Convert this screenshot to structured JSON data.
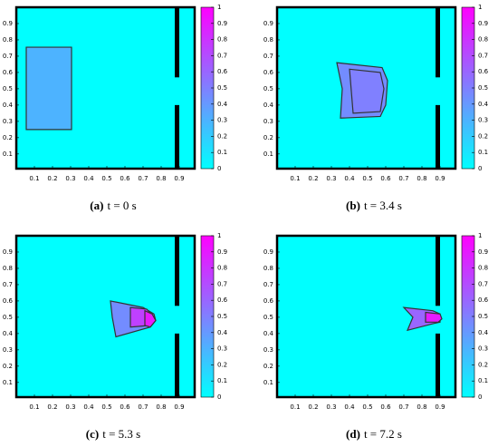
{
  "chart_data": [
    {
      "type": "contour",
      "caption_label": "(a)",
      "caption_text": "t = 0 s",
      "xlim": [
        0,
        0.985
      ],
      "ylim": [
        0.01,
        1
      ],
      "xticks": [
        0.1,
        0.2,
        0.3,
        0.4,
        0.5,
        0.6,
        0.7,
        0.8,
        0.9
      ],
      "yticks": [
        0.1,
        0.2,
        0.3,
        0.4,
        0.5,
        0.6,
        0.7,
        0.8,
        0.9
      ],
      "clim": [
        0,
        1
      ],
      "cticks": [
        0,
        0.1,
        0.2,
        0.3,
        0.4,
        0.5,
        0.6,
        0.7,
        0.8,
        0.9,
        1
      ],
      "colormap": [
        "#00ffff",
        "#ff00ff"
      ],
      "background_level": 0,
      "obstacles": [
        {
          "color": "#000000",
          "x": [
            0.875,
            0.9
          ],
          "y": [
            0.57,
            1
          ]
        },
        {
          "color": "#000000",
          "x": [
            0.875,
            0.9
          ],
          "y": [
            0.01,
            0.4
          ]
        }
      ],
      "regions": [
        {
          "level": 0.3,
          "x": [
            0.055,
            0.305,
            0.305,
            0.055
          ],
          "y": [
            0.755,
            0.755,
            0.25,
            0.25
          ]
        }
      ]
    },
    {
      "type": "contour",
      "caption_label": "(b)",
      "caption_text": "t = 3.4 s",
      "xlim": [
        0,
        0.985
      ],
      "ylim": [
        0.01,
        1
      ],
      "xticks": [
        0.1,
        0.2,
        0.3,
        0.4,
        0.5,
        0.6,
        0.7,
        0.8,
        0.9
      ],
      "yticks": [
        0.1,
        0.2,
        0.3,
        0.4,
        0.5,
        0.6,
        0.7,
        0.8,
        0.9
      ],
      "clim": [
        0,
        1
      ],
      "cticks": [
        0,
        0.1,
        0.2,
        0.3,
        0.4,
        0.5,
        0.6,
        0.7,
        0.8,
        0.9,
        1
      ],
      "colormap": [
        "#00ffff",
        "#ff00ff"
      ],
      "background_level": 0,
      "obstacles": [
        {
          "color": "#000000",
          "x": [
            0.875,
            0.9
          ],
          "y": [
            0.57,
            1
          ]
        },
        {
          "color": "#000000",
          "x": [
            0.875,
            0.9
          ],
          "y": [
            0.01,
            0.4
          ]
        }
      ],
      "regions": [
        {
          "level": 0.45,
          "x": [
            0.33,
            0.58,
            0.61,
            0.6,
            0.57,
            0.35,
            0.36
          ],
          "y": [
            0.66,
            0.63,
            0.55,
            0.4,
            0.33,
            0.32,
            0.5
          ]
        },
        {
          "level": 0.5,
          "x": [
            0.4,
            0.57,
            0.59,
            0.57,
            0.42
          ],
          "y": [
            0.62,
            0.6,
            0.5,
            0.36,
            0.35
          ]
        }
      ]
    },
    {
      "type": "contour",
      "caption_label": "(c)",
      "caption_text": "t = 5.3 s",
      "xlim": [
        0,
        0.985
      ],
      "ylim": [
        0.01,
        1
      ],
      "xticks": [
        0.1,
        0.2,
        0.3,
        0.4,
        0.5,
        0.6,
        0.7,
        0.8,
        0.9
      ],
      "yticks": [
        0.1,
        0.2,
        0.3,
        0.4,
        0.5,
        0.6,
        0.7,
        0.8,
        0.9
      ],
      "clim": [
        0,
        1
      ],
      "cticks": [
        0,
        0.1,
        0.2,
        0.3,
        0.4,
        0.5,
        0.6,
        0.7,
        0.8,
        0.9,
        1
      ],
      "colormap": [
        "#00ffff",
        "#ff00ff"
      ],
      "background_level": 0,
      "obstacles": [
        {
          "color": "#000000",
          "x": [
            0.875,
            0.9
          ],
          "y": [
            0.57,
            1
          ]
        },
        {
          "color": "#000000",
          "x": [
            0.875,
            0.9
          ],
          "y": [
            0.01,
            0.4
          ]
        }
      ],
      "regions": [
        {
          "level": 0.45,
          "x": [
            0.52,
            0.7,
            0.76,
            0.77,
            0.74,
            0.55,
            0.53
          ],
          "y": [
            0.6,
            0.56,
            0.52,
            0.48,
            0.44,
            0.38,
            0.5
          ]
        },
        {
          "level": 0.75,
          "x": [
            0.63,
            0.72,
            0.76,
            0.74,
            0.63
          ],
          "y": [
            0.56,
            0.55,
            0.5,
            0.45,
            0.44
          ]
        },
        {
          "level": 0.9,
          "x": [
            0.71,
            0.75,
            0.77,
            0.74,
            0.71
          ],
          "y": [
            0.54,
            0.52,
            0.48,
            0.44,
            0.45
          ]
        }
      ]
    },
    {
      "type": "contour",
      "caption_label": "(d)",
      "caption_text": "t = 7.2 s",
      "xlim": [
        0,
        0.985
      ],
      "ylim": [
        0.01,
        1
      ],
      "xticks": [
        0.1,
        0.2,
        0.3,
        0.4,
        0.5,
        0.6,
        0.7,
        0.8,
        0.9
      ],
      "yticks": [
        0.1,
        0.2,
        0.3,
        0.4,
        0.5,
        0.6,
        0.7,
        0.8,
        0.9
      ],
      "clim": [
        0,
        1
      ],
      "cticks": [
        0,
        0.1,
        0.2,
        0.3,
        0.4,
        0.5,
        0.6,
        0.7,
        0.8,
        0.9,
        1
      ],
      "colormap": [
        "#00ffff",
        "#ff00ff"
      ],
      "background_level": 0,
      "obstacles": [
        {
          "color": "#000000",
          "x": [
            0.875,
            0.9
          ],
          "y": [
            0.57,
            1
          ]
        },
        {
          "color": "#000000",
          "x": [
            0.875,
            0.9
          ],
          "y": [
            0.01,
            0.4
          ]
        }
      ],
      "regions": [
        {
          "level": 0.6,
          "x": [
            0.7,
            0.86,
            0.9,
            0.9,
            0.86,
            0.72,
            0.75
          ],
          "y": [
            0.56,
            0.54,
            0.52,
            0.47,
            0.46,
            0.42,
            0.5
          ]
        },
        {
          "level": 0.9,
          "x": [
            0.82,
            0.9,
            0.91,
            0.89,
            0.82
          ],
          "y": [
            0.53,
            0.52,
            0.49,
            0.47,
            0.47
          ]
        }
      ]
    }
  ]
}
